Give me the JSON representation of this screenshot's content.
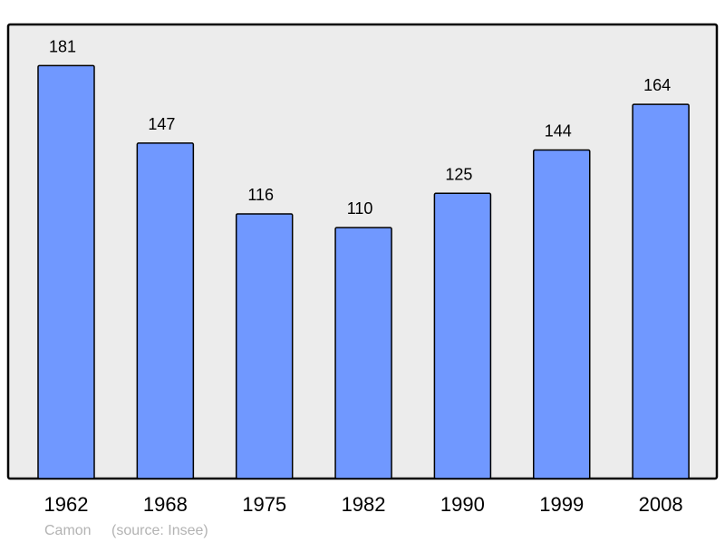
{
  "chart_data": {
    "type": "bar",
    "categories": [
      "1962",
      "1968",
      "1975",
      "1982",
      "1990",
      "1999",
      "2008"
    ],
    "values": [
      181,
      147,
      116,
      110,
      125,
      144,
      164
    ],
    "title": "",
    "xlabel": "",
    "ylabel": "",
    "ylim": [
      0,
      199
    ],
    "grid": false,
    "data_labels": true,
    "colors": {
      "bar": "#7098ff",
      "plot_background": "#ececec",
      "border": "#000000"
    }
  },
  "footer": {
    "place": "Camon",
    "source": "(source: Insee)"
  }
}
